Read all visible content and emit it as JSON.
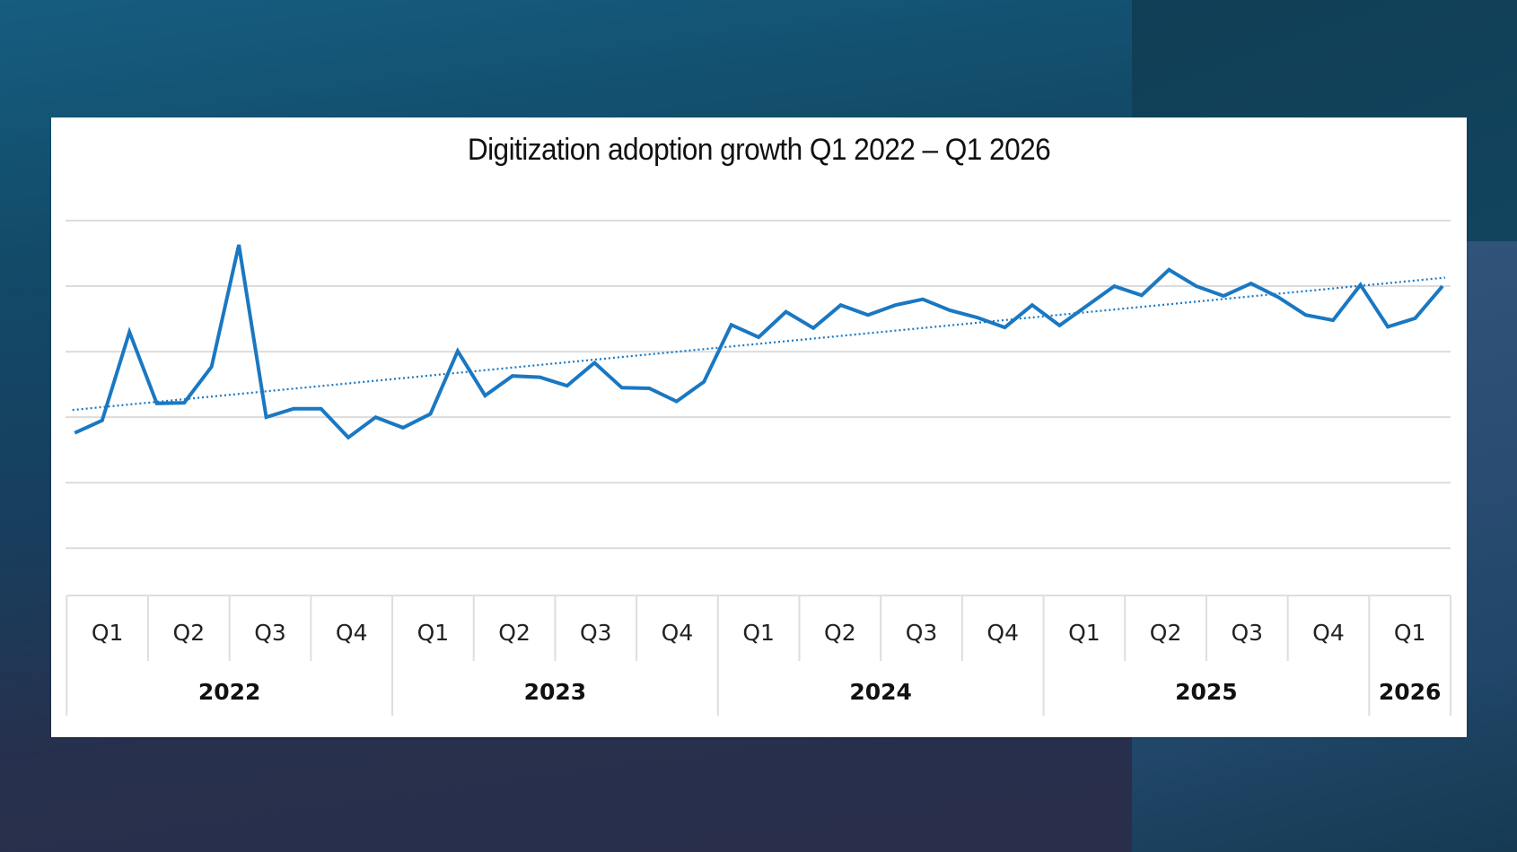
{
  "colors": {
    "series": "#1a78c2",
    "trend": "#1a78c2",
    "grid": "#dcdcdc",
    "card": "#ffffff"
  },
  "chart_data": {
    "type": "line",
    "title": "Digitization adoption growth Q1 2022 – Q1 2026",
    "xlabel": "",
    "ylabel": "",
    "y_tick_labels_shown": false,
    "ylim": [
      0,
      5
    ],
    "y_gridlines": [
      0,
      1,
      2,
      3,
      4,
      5
    ],
    "grid": true,
    "legend": "none",
    "x_granularity": "monthly",
    "x_axis_groups": [
      {
        "year": "2022",
        "quarters": [
          "Q1",
          "Q2",
          "Q3",
          "Q4"
        ]
      },
      {
        "year": "2023",
        "quarters": [
          "Q1",
          "Q2",
          "Q3",
          "Q4"
        ]
      },
      {
        "year": "2024",
        "quarters": [
          "Q1",
          "Q2",
          "Q3",
          "Q4"
        ]
      },
      {
        "year": "2025",
        "quarters": [
          "Q1",
          "Q2",
          "Q3",
          "Q4"
        ]
      },
      {
        "year": "2026",
        "quarters": [
          "Q1"
        ]
      }
    ],
    "series": [
      {
        "name": "Digitization adoption",
        "style": "solid",
        "values": [
          1.76,
          1.95,
          3.3,
          2.21,
          2.22,
          2.77,
          4.63,
          2.0,
          2.13,
          2.13,
          1.69,
          2.0,
          1.84,
          2.05,
          3.01,
          2.33,
          2.63,
          2.61,
          2.48,
          2.83,
          2.45,
          2.44,
          2.24,
          2.54,
          3.41,
          3.22,
          3.61,
          3.36,
          3.71,
          3.56,
          3.71,
          3.8,
          3.63,
          3.52,
          3.37,
          3.71,
          3.4,
          3.7,
          4.0,
          3.86,
          4.25,
          4.0,
          3.85,
          4.04,
          3.83,
          3.56,
          3.48,
          4.02,
          3.38,
          3.51,
          4.0
        ]
      },
      {
        "name": "Linear trend",
        "style": "dotted",
        "start": 2.11,
        "end": 4.13
      }
    ]
  }
}
